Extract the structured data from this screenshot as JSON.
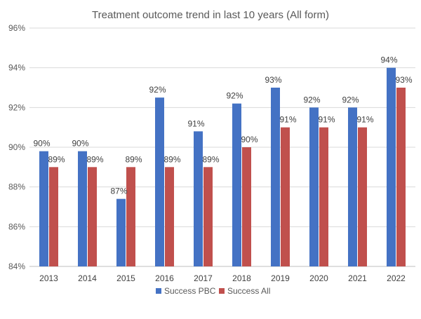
{
  "chart_data": {
    "type": "bar",
    "title": "Treatment outcome trend in last 10 years (All form)",
    "categories": [
      "2013",
      "2014",
      "2015",
      "2016",
      "2017",
      "2018",
      "2019",
      "2020",
      "2021",
      "2022"
    ],
    "series": [
      {
        "name": "Success PBC",
        "color": "#4472c4",
        "values": [
          89.8,
          89.8,
          87.4,
          92.5,
          90.8,
          92.2,
          93.0,
          92.0,
          92.0,
          94.0
        ],
        "labels": [
          "90%",
          "90%",
          "87%",
          "92%",
          "91%",
          "92%",
          "93%",
          "92%",
          "92%",
          "94%"
        ]
      },
      {
        "name": "Success All",
        "color": "#c0504d",
        "values": [
          89,
          89,
          89,
          89,
          89,
          90,
          91,
          91,
          91,
          93
        ],
        "labels": [
          "89%",
          "89%",
          "89%",
          "89%",
          "89%",
          "90%",
          "91%",
          "91%",
          "91%",
          "93%"
        ]
      }
    ],
    "ylim": [
      84,
      96
    ],
    "yticks": [
      84,
      86,
      88,
      90,
      92,
      94,
      96
    ],
    "ytick_labels": [
      "84%",
      "86%",
      "88%",
      "90%",
      "92%",
      "94%",
      "96%"
    ],
    "grid": true,
    "legend": "bottom-center"
  }
}
